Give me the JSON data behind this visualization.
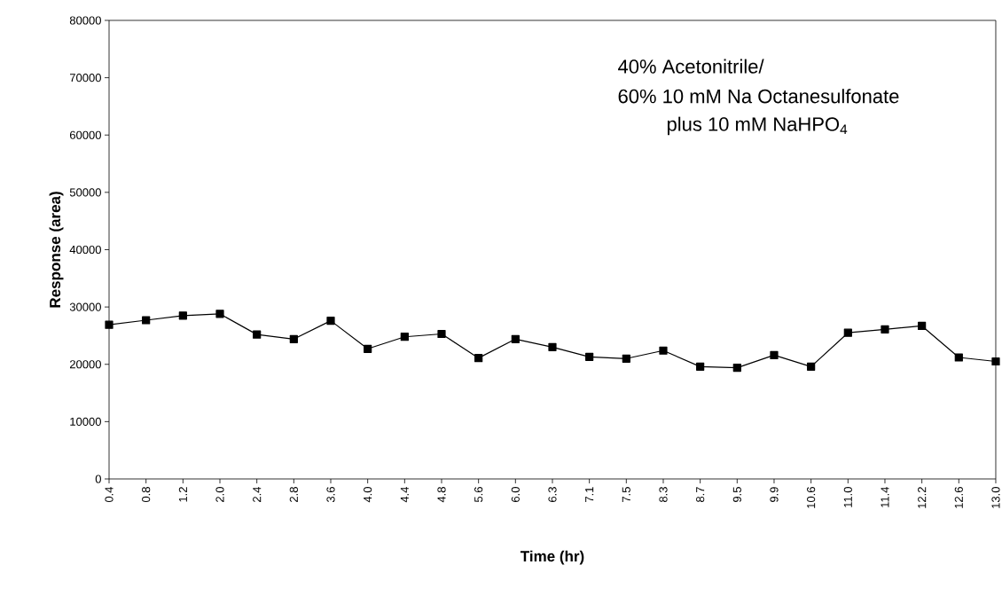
{
  "chart_data": {
    "type": "line",
    "xlabel": "Time (hr)",
    "ylabel": "Response (area)",
    "annotations": [
      "40% Acetonitrile/",
      "60% 10 mM Na Octanesulfonate",
      "plus 10 mM NaHPO$_{4}$"
    ],
    "categories": [
      "0.4",
      "0.8",
      "1.2",
      "2.0",
      "2.4",
      "2.8",
      "3.6",
      "4.0",
      "4.4",
      "4.8",
      "5.6",
      "6.0",
      "6.3",
      "7.1",
      "7.5",
      "8.3",
      "8.7",
      "9.5",
      "9.9",
      "10.6",
      "11.0",
      "11.4",
      "12.2",
      "12.6",
      "13.0"
    ],
    "values": [
      26900,
      27700,
      28500,
      28800,
      25200,
      24400,
      27600,
      22700,
      24800,
      25300,
      21100,
      24400,
      23000,
      21300,
      21000,
      22400,
      19600,
      19400,
      21600,
      19600,
      25500,
      26100,
      26700,
      21200,
      20500
    ],
    "color": "#000000",
    "marker": "square",
    "line_style": "solid",
    "ylim": [
      0,
      80000
    ],
    "yticks": [
      0,
      10000,
      20000,
      30000,
      40000,
      50000,
      60000,
      70000,
      80000
    ],
    "grid": false,
    "legend": false
  }
}
